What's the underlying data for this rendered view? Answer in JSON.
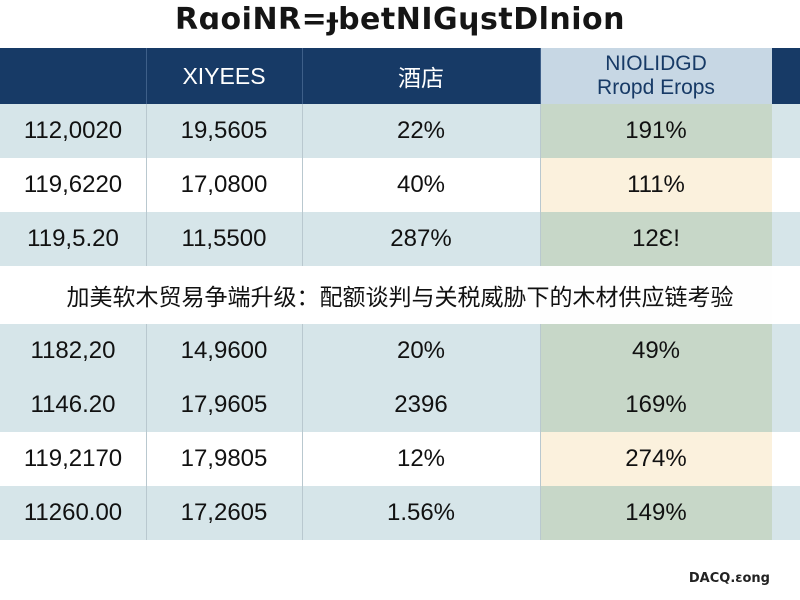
{
  "title": "RɑoiNR=ɟbetNIGɥstDlnion",
  "table": {
    "columns": [
      {
        "label": ""
      },
      {
        "label": "XIYEES"
      },
      {
        "label": "酒店"
      },
      {
        "label_line1": "NIOLIDGD",
        "label_line2": "Rropd Erops"
      }
    ],
    "rows": [
      [
        "112,0020",
        "19,5605",
        "22%",
        "191%"
      ],
      [
        "119,6220",
        "17,0800",
        "40%",
        "111%"
      ],
      [
        "119,5.20",
        "11,5500",
        "287%",
        "12Ɛ!"
      ],
      [
        "1182,20",
        "14,9600",
        "20%",
        "49%"
      ],
      [
        "1146.20",
        "17,9605",
        "2396",
        "169%"
      ],
      [
        "119,2170",
        "17,9805",
        "12%",
        "274%"
      ],
      [
        "11260.00",
        "17,2605",
        "1.56%",
        "149%"
      ]
    ]
  },
  "overlay_caption": "加美软木贸易争端升级：配额谈判与关税威胁下的木材供应链考验",
  "footer_text": "DACQ.ɛong"
}
